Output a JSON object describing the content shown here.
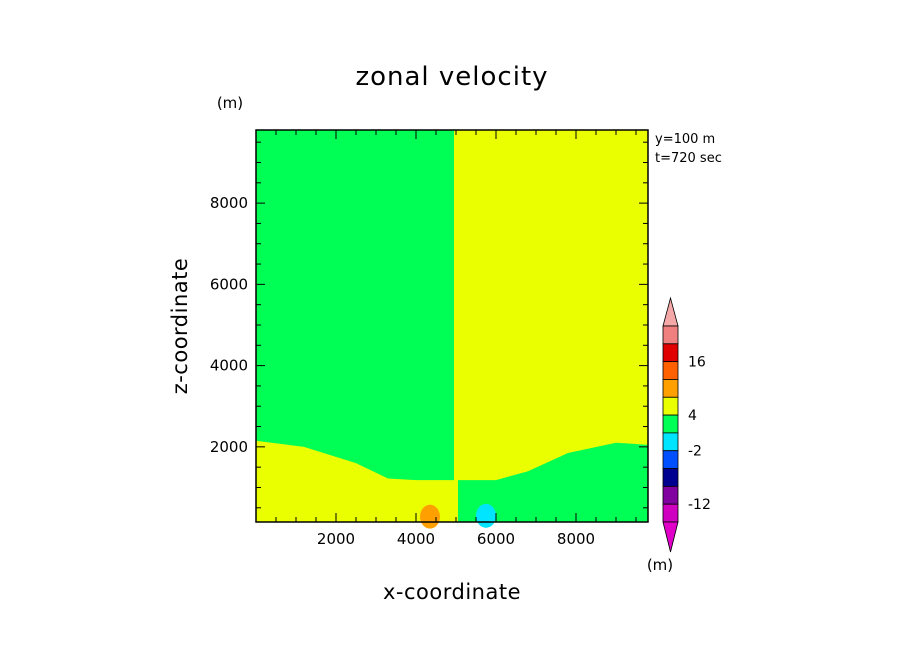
{
  "chart_data": {
    "type": "heatmap",
    "title": "zonal velocity",
    "xlabel": "x-coordinate",
    "ylabel": "z-coordinate",
    "x_unit": "(m)",
    "y_unit": "(m)",
    "xlim": [
      0,
      9800
    ],
    "ylim": [
      150,
      9800
    ],
    "x_ticks": [
      2000,
      4000,
      6000,
      8000
    ],
    "y_ticks": [
      2000,
      4000,
      6000,
      8000
    ],
    "info": [
      "y=100 m",
      "t=720 sec"
    ],
    "field": {
      "interface_x": 5000,
      "left_upper_class": "-2 to 4",
      "left_lower_class": "4 to 10",
      "right_upper_class": "4 to 10",
      "right_lower_class": "-2 to 4",
      "boundary_profile_left": [
        [
          0,
          2150
        ],
        [
          1200,
          2000
        ],
        [
          2500,
          1600
        ],
        [
          3300,
          1220
        ],
        [
          4000,
          1180
        ],
        [
          4900,
          1180
        ]
      ],
      "boundary_profile_right": [
        [
          5100,
          1180
        ],
        [
          6000,
          1180
        ],
        [
          6800,
          1400
        ],
        [
          7800,
          1850
        ],
        [
          9000,
          2100
        ],
        [
          9800,
          2050
        ]
      ],
      "blobs": [
        {
          "x": 4350,
          "z": 380,
          "class": "orange"
        },
        {
          "x": 5750,
          "z": 400,
          "class": "cyan"
        }
      ]
    },
    "colorbar": {
      "labels": [
        "16",
        "4",
        "-2",
        "-12"
      ],
      "unit": "(m)",
      "colors": [
        "#f08080",
        "#e00000",
        "#ff6000",
        "#ffa000",
        "#eaff00",
        "#00ff55",
        "#00e5ff",
        "#0050ff",
        "#000090",
        "#8000a0",
        "#d000c0"
      ],
      "over_color": "#f4a8a8",
      "under_color": "#e000c8"
    },
    "colors": {
      "green": "#00ff55",
      "yellow": "#eaff00",
      "orange": "#ffa000",
      "cyan": "#00e5ff"
    }
  }
}
